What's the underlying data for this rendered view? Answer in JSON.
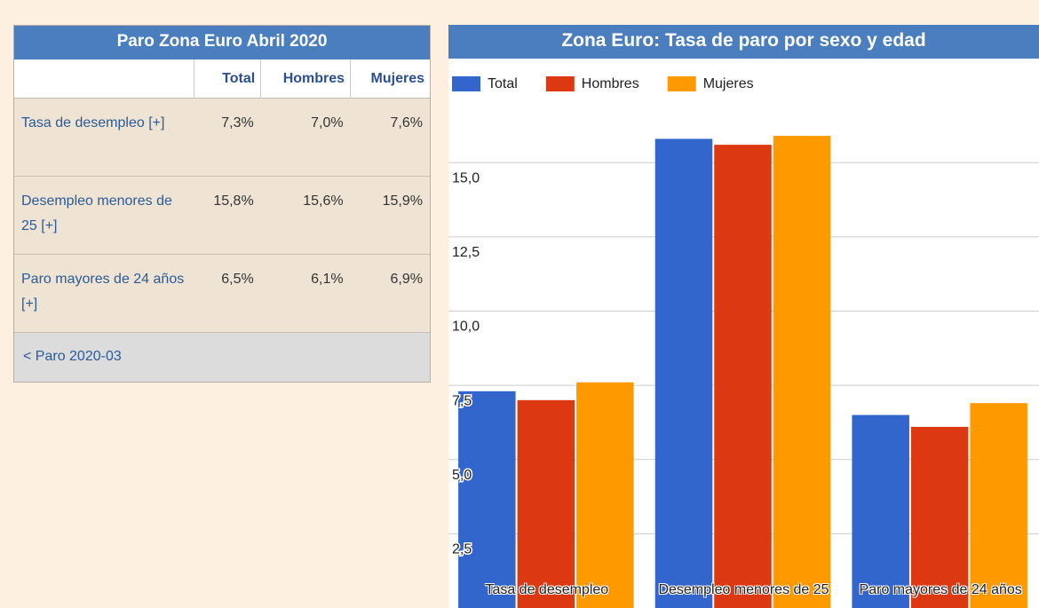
{
  "table": {
    "title": "Paro Zona Euro Abril 2020",
    "headers": [
      "Total",
      "Hombres",
      "Mujeres"
    ],
    "rows": [
      [
        "Tasa de desempleo [+]",
        "7,3%",
        "7,0%",
        "7,6%"
      ],
      [
        "Desempleo menores de 25 [+]",
        "15,8%",
        "15,6%",
        "15,9%"
      ],
      [
        "Paro mayores de 24 años [+]",
        "6,5%",
        "6,1%",
        "6,9%"
      ]
    ],
    "footer": "< Paro 2020-03"
  },
  "chart_data": {
    "type": "bar",
    "title": "Zona Euro: Tasa de paro por sexo y edad",
    "categories": [
      "Tasa de desempleo",
      "Desempleo menores de 25",
      "Paro mayores de 24 años"
    ],
    "series": [
      {
        "name": "Total",
        "color": "#3366cc",
        "values": [
          7.3,
          15.8,
          6.5
        ]
      },
      {
        "name": "Hombres",
        "color": "#dc3912",
        "values": [
          7.0,
          15.6,
          6.1
        ]
      },
      {
        "name": "Mujeres",
        "color": "#ff9900",
        "values": [
          7.6,
          15.9,
          6.9
        ]
      }
    ],
    "ylim": [
      0,
      16.5
    ],
    "yticks": [
      {
        "value": 2.5,
        "label": "2,5"
      },
      {
        "value": 5,
        "label": "5,0"
      },
      {
        "value": 7.5,
        "label": "7,5"
      },
      {
        "value": 10,
        "label": "10,0"
      },
      {
        "value": 12.5,
        "label": "12,5"
      },
      {
        "value": 15,
        "label": "15,0"
      }
    ],
    "grid": true,
    "legend": "top"
  }
}
